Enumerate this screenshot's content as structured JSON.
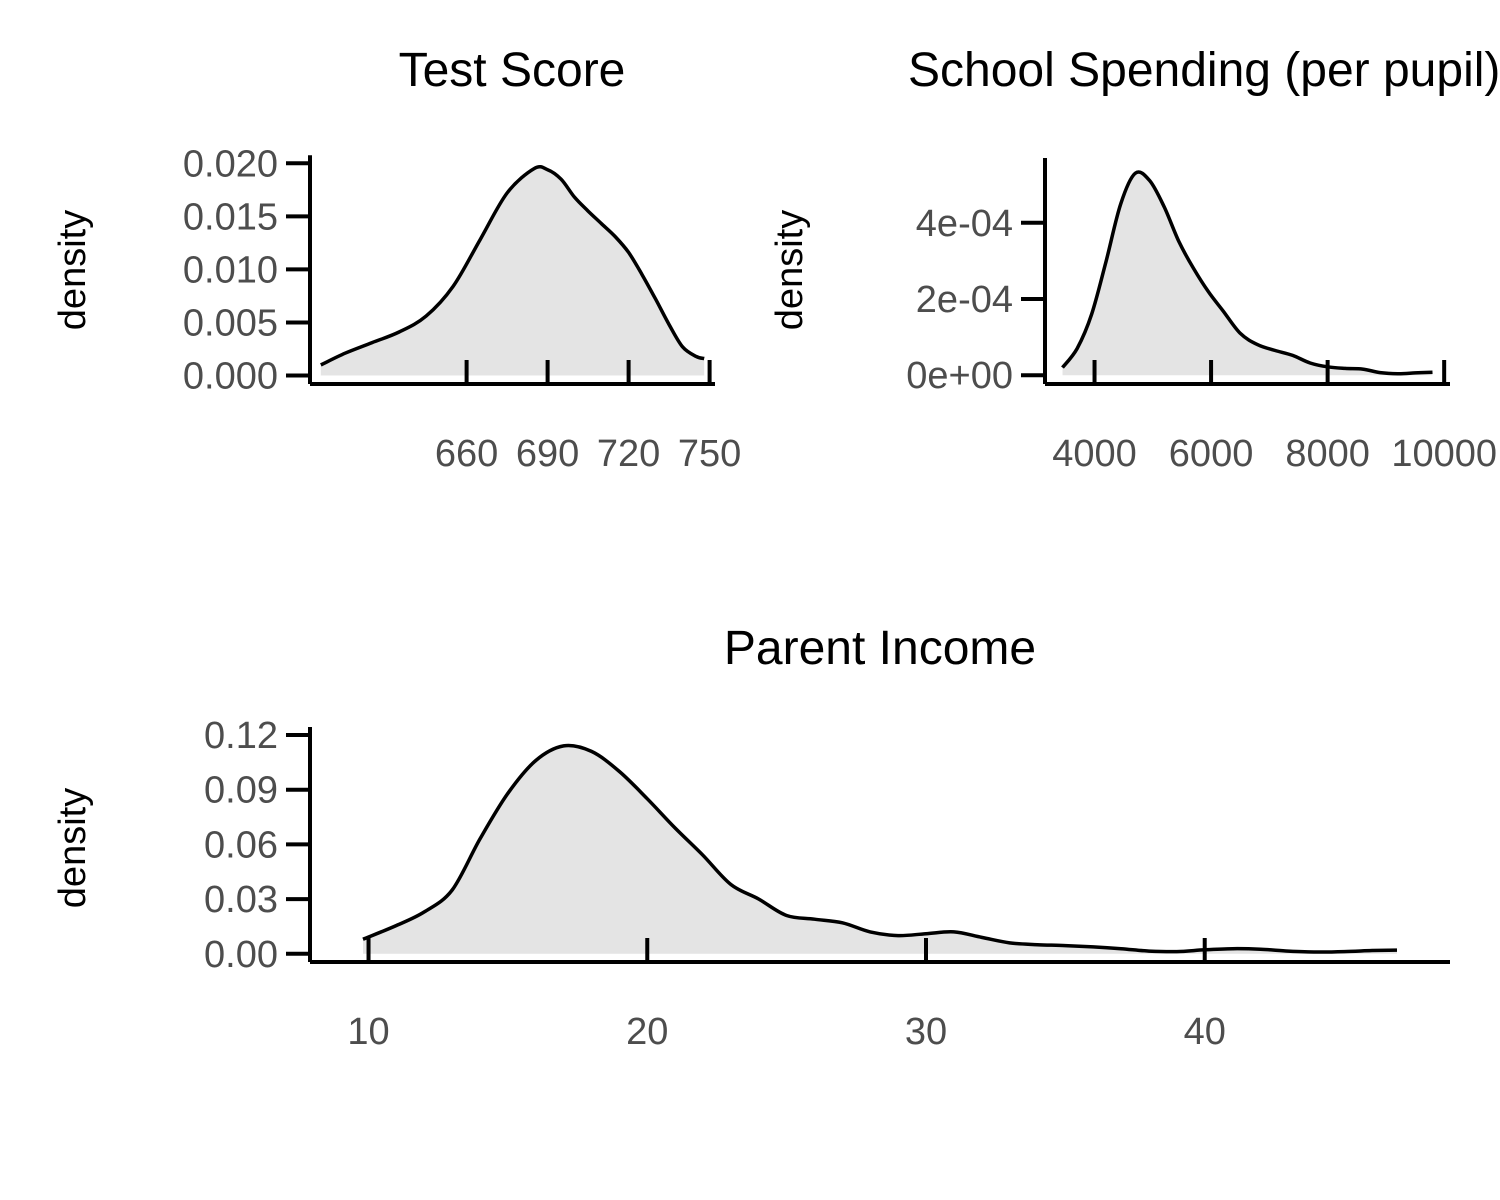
{
  "chart_data": [
    {
      "type": "area",
      "title": "Test Score",
      "xlabel": "",
      "ylabel": "density",
      "xlim": [
        602,
        752
      ],
      "ylim": [
        -0.0008,
        0.0205
      ],
      "x_ticks": [
        660,
        690,
        720,
        750
      ],
      "x_tick_labels": [
        "660",
        "690",
        "720",
        "750"
      ],
      "y_ticks": [
        0.0,
        0.005,
        0.01,
        0.015,
        0.02
      ],
      "y_tick_labels": [
        "0.000",
        "0.005",
        "0.010",
        "0.015",
        "0.020"
      ],
      "fill_color": "#e4e4e4",
      "line_color": "#000000",
      "x": [
        606,
        615,
        625,
        635,
        645,
        655,
        665,
        675,
        685,
        690,
        695,
        700,
        705,
        710,
        715,
        720,
        725,
        730,
        735,
        740,
        745,
        748
      ],
      "y": [
        0.001,
        0.0021,
        0.0031,
        0.0041,
        0.0056,
        0.0084,
        0.0128,
        0.0172,
        0.0195,
        0.0194,
        0.0185,
        0.0168,
        0.0155,
        0.0143,
        0.0131,
        0.0116,
        0.0095,
        0.0072,
        0.0048,
        0.0027,
        0.0018,
        0.0016
      ]
    },
    {
      "type": "area",
      "title": "School Spending (per pupil)",
      "xlabel": "",
      "ylabel": "density",
      "xlim": [
        3150,
        10100
      ],
      "ylim": [
        -2.3e-05,
        0.00057
      ],
      "x_ticks": [
        4000,
        6000,
        8000,
        10000
      ],
      "x_tick_labels": [
        "4000",
        "6000",
        "8000",
        "10000"
      ],
      "y_ticks": [
        0.0,
        0.0002,
        0.0004
      ],
      "y_tick_labels": [
        "0e+00",
        "2e-04",
        "4e-04"
      ],
      "fill_color": "#e4e4e4",
      "line_color": "#000000",
      "x": [
        3450,
        3700,
        3950,
        4200,
        4450,
        4700,
        4950,
        5200,
        5450,
        5700,
        5950,
        6200,
        6500,
        6800,
        7100,
        7400,
        7700,
        8000,
        8300,
        8600,
        8900,
        9200,
        9500,
        9800
      ],
      "y": [
        2e-05,
        7e-05,
        0.00016,
        0.0003,
        0.00045,
        0.00053,
        0.00051,
        0.00044,
        0.00035,
        0.00028,
        0.00022,
        0.00017,
        0.00011,
        8e-05,
        6.5e-05,
        5.2e-05,
        3.2e-05,
        2.2e-05,
        1.8e-05,
        1.6e-05,
        7e-06,
        4e-06,
        6e-06,
        8e-06
      ]
    },
    {
      "type": "area",
      "title": "Parent Income",
      "xlabel": "",
      "ylabel": "density",
      "xlim": [
        7.9,
        48.8
      ],
      "ylim": [
        -0.0045,
        0.12
      ],
      "x_ticks": [
        10,
        20,
        30,
        40
      ],
      "x_tick_labels": [
        "10",
        "20",
        "30",
        "40"
      ],
      "y_ticks": [
        0.0,
        0.03,
        0.06,
        0.09,
        0.12
      ],
      "y_tick_labels": [
        "0.00",
        "0.03",
        "0.06",
        "0.09",
        "0.12"
      ],
      "fill_color": "#e4e4e4",
      "line_color": "#000000",
      "x": [
        9.8,
        11,
        12,
        13,
        14,
        15,
        16,
        17,
        18,
        19,
        20,
        21,
        22,
        23,
        24,
        25,
        26,
        27,
        28,
        29,
        30,
        31,
        32,
        33,
        34,
        35,
        36,
        37,
        38,
        39,
        40,
        41,
        42,
        43,
        44,
        45,
        46,
        46.9
      ],
      "y": [
        0.008,
        0.0155,
        0.023,
        0.035,
        0.063,
        0.088,
        0.106,
        0.114,
        0.111,
        0.1,
        0.085,
        0.069,
        0.054,
        0.038,
        0.03,
        0.021,
        0.019,
        0.017,
        0.012,
        0.01,
        0.011,
        0.012,
        0.009,
        0.006,
        0.005,
        0.0045,
        0.0038,
        0.0028,
        0.0015,
        0.0012,
        0.0022,
        0.0028,
        0.0025,
        0.0015,
        0.001,
        0.0012,
        0.0018,
        0.002
      ]
    }
  ]
}
